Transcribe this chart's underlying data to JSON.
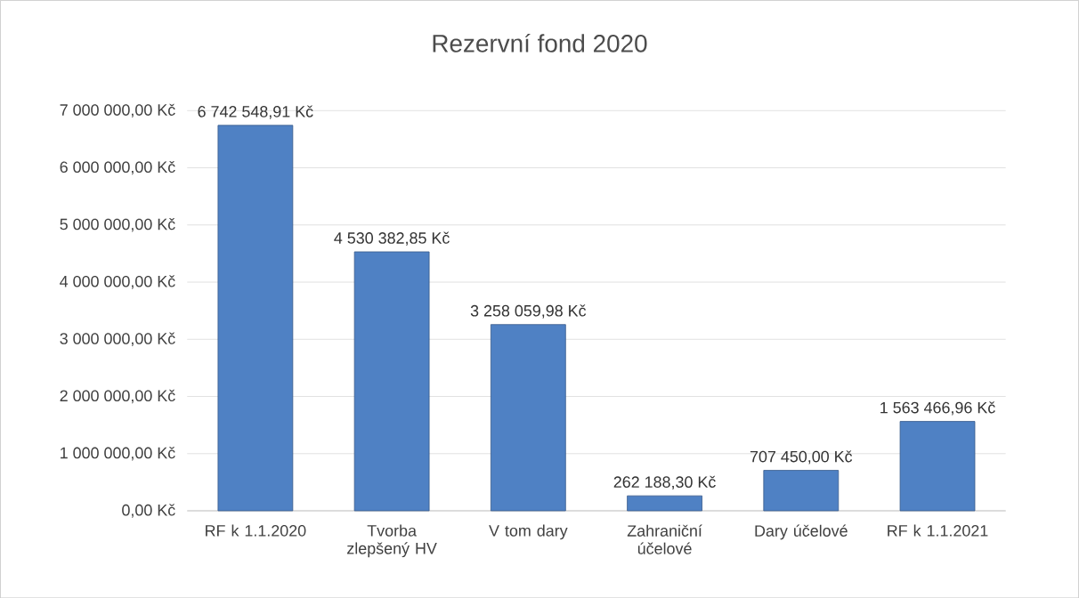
{
  "chart_data": {
    "type": "bar",
    "title": "Rezervní fond 2020",
    "categories": [
      "RF   k 1.1.2020",
      "Tvorba zlepšený HV",
      "V tom dary",
      "Zahraniční účelové",
      "Dary účelové",
      "RF   k 1.1.2021"
    ],
    "values": [
      6742548.91,
      4530382.85,
      3258059.98,
      262188.3,
      707450.0,
      1563466.96
    ],
    "value_labels": [
      "6 742 548,91 Kč",
      "4 530 382,85 Kč",
      "3 258 059,98 Kč",
      "262 188,30 Kč",
      "707 450,00 Kč",
      "1 563 466,96 Kč"
    ],
    "color": "#4f81c4",
    "ylim": [
      0,
      7000000
    ],
    "yticks": [
      {
        "value": 0,
        "label": "0,00 Kč"
      },
      {
        "value": 1000000,
        "label": "1 000 000,00 Kč"
      },
      {
        "value": 2000000,
        "label": "2 000 000,00 Kč"
      },
      {
        "value": 3000000,
        "label": "3 000 000,00 Kč"
      },
      {
        "value": 4000000,
        "label": "4 000 000,00 Kč"
      },
      {
        "value": 5000000,
        "label": "5 000 000,00 Kč"
      },
      {
        "value": 6000000,
        "label": "6 000 000,00 Kč"
      },
      {
        "value": 7000000,
        "label": "7 000 000,00 Kč"
      }
    ],
    "grid": "y"
  }
}
